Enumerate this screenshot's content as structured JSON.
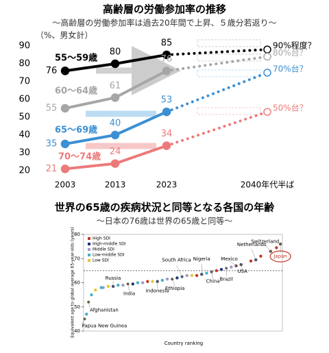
{
  "chart_data": [
    {
      "type": "line",
      "title": "高齢層の労働参加率の推移",
      "subtitle": "～高齢層の労働参加率は過去20年間で上昇、５歳分若返り～",
      "unit_label": "（%、男女計）",
      "categories": [
        "2003",
        "2013",
        "2023",
        "2040年代半ば"
      ],
      "ylim": [
        20,
        90
      ],
      "yticks": [
        20,
        30,
        40,
        50,
        60,
        70,
        80,
        90
      ],
      "series": [
        {
          "name": "55〜59歳",
          "color": "#000000",
          "values": [
            76,
            80,
            85,
            88
          ]
        },
        {
          "name": "60〜64歳",
          "color": "#a6a6a6",
          "values": [
            55,
            61,
            76,
            84
          ]
        },
        {
          "name": "65〜69歳",
          "color": "#3b8fd3",
          "values": [
            35,
            40,
            53,
            75
          ]
        },
        {
          "name": "70〜74歳",
          "color": "#ec7a7a",
          "values": [
            21,
            24,
            34,
            53
          ]
        }
      ],
      "projection_labels": [
        "90%程度？",
        "80%台？",
        "70%台？",
        "50%台？"
      ]
    },
    {
      "type": "scatter",
      "title": "世界の65歳の疾病状況と同等となる各国の年齢",
      "subtitle": "～日本の76歳は世界の65歳と同等～",
      "ylabel": "Equivalent age to global average 65-year-olds (years)",
      "xlabel": "Country ranking",
      "xlim": [
        0,
        202
      ],
      "ylim": [
        40,
        80
      ],
      "yticks": [
        40,
        50,
        60,
        70,
        80
      ],
      "hline": 65,
      "series": [
        {
          "name": "High SDI",
          "color": "#c0392b",
          "x": [
            65,
            115,
            135,
            155,
            170,
            180,
            190,
            196,
            200
          ],
          "values": [
            60.5,
            63,
            65,
            67,
            69,
            71,
            73,
            74.5,
            76
          ]
        },
        {
          "name": "High-middle SDI",
          "color": "#24327e",
          "x": [
            30,
            50,
            75,
            95,
            120,
            140,
            160,
            175
          ],
          "values": [
            58.5,
            59.5,
            60.5,
            62,
            63.5,
            65.5,
            67.5,
            69.5
          ]
        },
        {
          "name": "Middle SDI",
          "color": "#a397cc",
          "x": [
            20,
            40,
            60,
            85,
            105,
            130,
            150
          ],
          "values": [
            58,
            59,
            60,
            61.5,
            63,
            64.5,
            66.5
          ]
        },
        {
          "name": "Low-middle SDI",
          "color": "#3fb2c4",
          "x": [
            3,
            8,
            18,
            35,
            55,
            80,
            100,
            125
          ],
          "values": [
            47,
            55,
            58,
            59,
            60,
            61,
            62.5,
            64
          ]
        },
        {
          "name": "Low SDI",
          "color": "#e3c63a",
          "x": [
            1,
            5,
            12,
            25,
            45,
            70,
            90,
            110
          ],
          "values": [
            45,
            52,
            57,
            58.5,
            59.5,
            60.5,
            61.5,
            63
          ]
        }
      ],
      "labels": [
        {
          "name": "Papua New Guinea",
          "x": 1,
          "y": 45
        },
        {
          "name": "Afghanistan",
          "x": 5,
          "y": 52
        },
        {
          "name": "Russia",
          "x": 30,
          "y": 58.5
        },
        {
          "name": "India",
          "x": 45,
          "y": 59.5
        },
        {
          "name": "Indonesia",
          "x": 75,
          "y": 60.5
        },
        {
          "name": "Ethiopia",
          "x": 90,
          "y": 61.5
        },
        {
          "name": "South Africa",
          "x": 100,
          "y": 62.5
        },
        {
          "name": "Nigeria",
          "x": 120,
          "y": 63.5
        },
        {
          "name": "China",
          "x": 130,
          "y": 64.5
        },
        {
          "name": "Brazil",
          "x": 145,
          "y": 66
        },
        {
          "name": "Mexico",
          "x": 155,
          "y": 67
        },
        {
          "name": "USA",
          "x": 160,
          "y": 67.5
        },
        {
          "name": "Netherlands",
          "x": 175,
          "y": 69.5
        },
        {
          "name": "Switzerland",
          "x": 190,
          "y": 73
        },
        {
          "name": "Japan",
          "x": 200,
          "y": 76
        }
      ]
    }
  ]
}
